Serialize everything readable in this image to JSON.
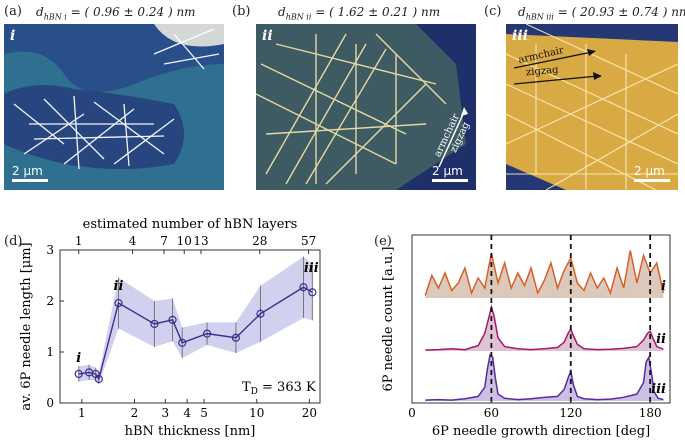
{
  "panels": {
    "a": {
      "label": "(a)",
      "thickness_prefix": "d",
      "thickness_sub": "hBN i",
      "thickness_value": "= ( 0.96 ± 0.24 ) nm",
      "corner": "i",
      "scale": "2 μm"
    },
    "b": {
      "label": "(b)",
      "thickness_prefix": "d",
      "thickness_sub": "hBN ii",
      "thickness_value": "= ( 1.62 ± 0.21 ) nm",
      "corner": "ii",
      "scale": "2 μm",
      "arrow_armchair": "armchair",
      "arrow_zigzag": "zigzag"
    },
    "c": {
      "label": "(c)",
      "thickness_prefix": "d",
      "thickness_sub": "hBN iii",
      "thickness_value": "= ( 20.93 ± 0.74 ) nm",
      "corner": "iii",
      "scale": "2 μm",
      "arrow_armchair": "armchair",
      "arrow_zigzag": "zigzag"
    },
    "d": {
      "label": "(d)"
    },
    "e": {
      "label": "(e)"
    }
  },
  "chart_data": [
    {
      "type": "line",
      "title": "",
      "xlabel": "hBN thickness [nm]",
      "ylabel": "av. 6P needle length [μm]",
      "top_axis_label": "estimated number of hBN layers",
      "x_scale": "log",
      "xlim": [
        0.75,
        23
      ],
      "ylim": [
        0,
        3
      ],
      "x_ticks": [
        1,
        2,
        3,
        4,
        5,
        10,
        20
      ],
      "y_ticks": [
        0,
        1,
        2,
        3
      ],
      "top_ticks": [
        "1",
        "4",
        "7",
        "10",
        "13",
        "28",
        "57"
      ],
      "top_tick_positions_nm": [
        0.96,
        1.95,
        2.95,
        3.85,
        4.8,
        10.4,
        19.8
      ],
      "annotation": "T",
      "annotation_sub": "D",
      "annotation_rest": " = 363 K",
      "markers": [
        {
          "text": "i",
          "x": 0.96,
          "y": 0.8
        },
        {
          "text": "ii",
          "x": 1.62,
          "y": 2.22
        },
        {
          "text": "iii",
          "x": 20.5,
          "y": 2.57
        }
      ],
      "series": [
        {
          "name": "av. needle length",
          "color": "#3b2f8f",
          "band_color": "#c9c9ec",
          "x": [
            0.96,
            1.1,
            1.2,
            1.25,
            1.62,
            2.6,
            3.3,
            3.75,
            5.2,
            7.6,
            10.5,
            18.5,
            20.8
          ],
          "y": [
            0.57,
            0.6,
            0.57,
            0.47,
            1.96,
            1.55,
            1.63,
            1.18,
            1.36,
            1.28,
            1.75,
            2.27,
            2.17
          ],
          "err": [
            0.15,
            0.15,
            0.12,
            0.1,
            0.5,
            0.45,
            0.42,
            0.3,
            0.22,
            0.3,
            0.55,
            0.6,
            0.55
          ]
        }
      ]
    },
    {
      "type": "area",
      "title": "",
      "xlabel": "6P needle growth direction [deg]",
      "ylabel": "6P needle count [a.u.]",
      "xlim": [
        0,
        195
      ],
      "x_ticks": [
        0,
        60,
        120,
        180
      ],
      "dashed_lines_at": [
        60,
        120,
        180
      ],
      "series": [
        {
          "name": "i",
          "color": "#d4602a",
          "fill": "#d8c3b4",
          "x": [
            10,
            15,
            20,
            25,
            30,
            35,
            40,
            45,
            50,
            55,
            60,
            65,
            70,
            75,
            80,
            85,
            90,
            95,
            100,
            105,
            110,
            115,
            120,
            125,
            130,
            135,
            140,
            145,
            150,
            155,
            160,
            165,
            170,
            175,
            180,
            185,
            190
          ],
          "y": [
            0.05,
            0.45,
            0.2,
            0.5,
            0.15,
            0.3,
            0.6,
            0.1,
            0.4,
            0.2,
            0.9,
            0.3,
            0.7,
            0.2,
            0.5,
            0.25,
            0.6,
            0.1,
            0.35,
            0.7,
            0.2,
            0.55,
            0.8,
            0.3,
            0.15,
            0.5,
            0.2,
            0.4,
            0.1,
            0.6,
            0.2,
            0.95,
            0.3,
            0.85,
            0.5,
            0.7,
            0.1
          ]
        },
        {
          "name": "ii",
          "color": "#a8166e",
          "fill": "#d8bdd1",
          "x": [
            10,
            20,
            30,
            40,
            45,
            50,
            55,
            58,
            60,
            62,
            65,
            70,
            80,
            90,
            100,
            110,
            115,
            118,
            120,
            122,
            125,
            130,
            140,
            150,
            160,
            170,
            175,
            178,
            180,
            182,
            185,
            190
          ],
          "y": [
            0.02,
            0.03,
            0.05,
            0.03,
            0.08,
            0.12,
            0.4,
            0.75,
            1.0,
            0.8,
            0.3,
            0.1,
            0.05,
            0.03,
            0.05,
            0.08,
            0.2,
            0.4,
            0.5,
            0.35,
            0.15,
            0.05,
            0.03,
            0.04,
            0.06,
            0.1,
            0.25,
            0.4,
            0.45,
            0.3,
            0.1,
            0.04
          ]
        },
        {
          "name": "iii",
          "color": "#5a2aa0",
          "fill": "#c6b8e3",
          "x": [
            10,
            20,
            30,
            40,
            50,
            55,
            57,
            59,
            61,
            63,
            65,
            70,
            80,
            90,
            100,
            110,
            115,
            118,
            120,
            122,
            125,
            130,
            140,
            150,
            160,
            170,
            175,
            177,
            179,
            181,
            183,
            186,
            190
          ],
          "y": [
            0.02,
            0.03,
            0.02,
            0.05,
            0.1,
            0.3,
            0.7,
            1.0,
            0.95,
            0.5,
            0.15,
            0.06,
            0.03,
            0.05,
            0.08,
            0.1,
            0.25,
            0.5,
            0.65,
            0.35,
            0.1,
            0.05,
            0.03,
            0.04,
            0.08,
            0.15,
            0.4,
            0.85,
            0.95,
            0.6,
            0.2,
            0.06,
            0.03
          ]
        }
      ]
    }
  ]
}
